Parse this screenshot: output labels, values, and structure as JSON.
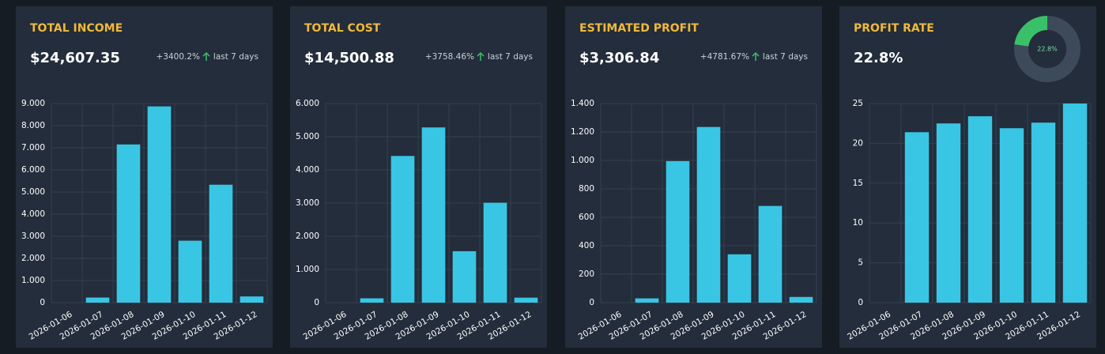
{
  "chart_data": [
    {
      "type": "bar",
      "title": "TOTAL INCOME",
      "headline": "$24,607.35",
      "change": "+3400.2%",
      "period": "last 7 days",
      "categories": [
        "2026-01-06",
        "2026-01-07",
        "2026-01-08",
        "2026-01-09",
        "2026-01-10",
        "2026-01-11",
        "2026-01-12"
      ],
      "values": [
        0,
        230,
        7150,
        8870,
        2800,
        5330,
        280
      ],
      "color": "#38c6e4",
      "ylim": [
        0,
        9000
      ],
      "yticks": [
        0,
        {
          "value": 1000,
          "label": "1.000"
        },
        {
          "value": 2000,
          "label": "2.000"
        },
        {
          "value": 3000,
          "label": "3.000"
        },
        {
          "value": 4000,
          "label": "4.000"
        },
        {
          "value": 5000,
          "label": "5.000"
        },
        {
          "value": 6000,
          "label": "6.000"
        },
        {
          "value": 7000,
          "label": "7.000"
        },
        {
          "value": 8000,
          "label": "8.000"
        },
        {
          "value": 9000,
          "label": "9.000"
        }
      ],
      "grid": true
    },
    {
      "type": "bar",
      "title": "TOTAL COST",
      "headline": "$14,500.88",
      "change": "+3758.46%",
      "period": "last 7 days",
      "categories": [
        "2026-01-06",
        "2026-01-07",
        "2026-01-08",
        "2026-01-09",
        "2026-01-10",
        "2026-01-11",
        "2026-01-12"
      ],
      "values": [
        0,
        130,
        4420,
        5280,
        1550,
        3010,
        150
      ],
      "color": "#38c6e4",
      "ylim": [
        0,
        6000
      ],
      "yticks": [
        0,
        {
          "value": 1000,
          "label": "1.000"
        },
        {
          "value": 2000,
          "label": "2.000"
        },
        {
          "value": 3000,
          "label": "3.000"
        },
        {
          "value": 4000,
          "label": "4.000"
        },
        {
          "value": 5000,
          "label": "5.000"
        },
        {
          "value": 6000,
          "label": "6.000"
        }
      ],
      "grid": true
    },
    {
      "type": "bar",
      "title": "ESTIMATED PROFIT",
      "headline": "$3,306.84",
      "change": "+4781.67%",
      "period": "last 7 days",
      "categories": [
        "2026-01-06",
        "2026-01-07",
        "2026-01-08",
        "2026-01-09",
        "2026-01-10",
        "2026-01-11",
        "2026-01-12"
      ],
      "values": [
        0,
        30,
        995,
        1235,
        340,
        680,
        40
      ],
      "color": "#38c6e4",
      "ylim": [
        0,
        1400
      ],
      "yticks": [
        0,
        200,
        400,
        600,
        800,
        {
          "value": 1000,
          "label": "1.000"
        },
        {
          "value": 1200,
          "label": "1.200"
        },
        {
          "value": 1400,
          "label": "1.400"
        }
      ],
      "grid": true
    },
    {
      "type": "bar",
      "title": "PROFIT RATE",
      "headline": "22.8%",
      "categories": [
        "2026-01-06",
        "2026-01-07",
        "2026-01-08",
        "2026-01-09",
        "2026-01-10",
        "2026-01-11",
        "2026-01-12"
      ],
      "values": [
        null,
        21.4,
        22.5,
        23.4,
        21.9,
        22.6,
        25.0
      ],
      "color": "#38c6e4",
      "ylim": [
        0,
        25
      ],
      "yticks": [
        0,
        5,
        10,
        15,
        20,
        25
      ],
      "grid": true
    },
    {
      "type": "pie",
      "values": [
        22.8,
        77.2
      ],
      "colors": [
        "#3bc06a",
        "#3d4a5a"
      ],
      "label": "22.8%"
    }
  ]
}
